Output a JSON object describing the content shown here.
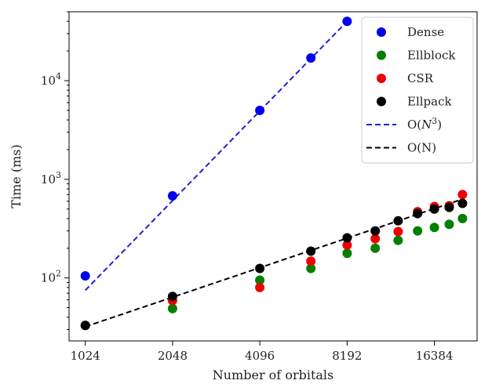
{
  "chart_data": {
    "type": "scatter",
    "title": "",
    "xlabel": "Number of orbitals",
    "ylabel": "Time (ms)",
    "x_scale": "log2",
    "y_scale": "log10",
    "xlim": [
      900,
      23000
    ],
    "ylim": [
      23,
      50000
    ],
    "x_ticks": [
      {
        "value": 1024,
        "label": "1024"
      },
      {
        "value": 2048,
        "label": "2048"
      },
      {
        "value": 4096,
        "label": "4096"
      },
      {
        "value": 8192,
        "label": "8192"
      },
      {
        "value": 16384,
        "label": "16384"
      }
    ],
    "y_ticks": [
      {
        "value": 100,
        "base": "10",
        "exp": "2"
      },
      {
        "value": 1000,
        "base": "10",
        "exp": "3"
      },
      {
        "value": 10000,
        "base": "10",
        "exp": "4"
      }
    ],
    "grid": false,
    "legend_position": "top-right",
    "series": [
      {
        "name": "Dense",
        "kind": "scatter",
        "color": "#0000ee",
        "x": [
          1024,
          2048,
          4096,
          6144,
          8192
        ],
        "y": [
          105,
          680,
          5000,
          17000,
          40000
        ]
      },
      {
        "name": "Ellblock",
        "kind": "scatter",
        "color": "#008000",
        "x": [
          1024,
          2048,
          4096,
          6144,
          8192,
          10240,
          12288,
          14336,
          16384,
          18432,
          20480
        ],
        "y": [
          33,
          49,
          95,
          125,
          178,
          200,
          240,
          300,
          325,
          350,
          400
        ]
      },
      {
        "name": "CSR",
        "kind": "scatter",
        "color": "#ee0000",
        "x": [
          1024,
          2048,
          4096,
          6144,
          8192,
          10240,
          12288,
          14336,
          16384,
          18432,
          20480
        ],
        "y": [
          33,
          59,
          80,
          148,
          215,
          250,
          295,
          470,
          530,
          540,
          700
        ]
      },
      {
        "name": "Ellpack",
        "kind": "scatter",
        "color": "#000000",
        "x": [
          1024,
          2048,
          4096,
          6144,
          8192,
          10240,
          12288,
          14336,
          16384,
          18432,
          20480
        ],
        "y": [
          33,
          65,
          125,
          187,
          255,
          300,
          380,
          450,
          500,
          520,
          570
        ]
      },
      {
        "name_prefix": "O(",
        "name_var": "N",
        "name_exp": "3",
        "name_suffix": ")",
        "kind": "line",
        "dash": true,
        "color": "#1f1fdd",
        "x": [
          1024,
          8192
        ],
        "y": [
          75,
          40000
        ]
      },
      {
        "name": "O(N)",
        "kind": "line",
        "dash": true,
        "color": "#000000",
        "x": [
          1024,
          20480
        ],
        "y": [
          32,
          630
        ]
      }
    ]
  }
}
